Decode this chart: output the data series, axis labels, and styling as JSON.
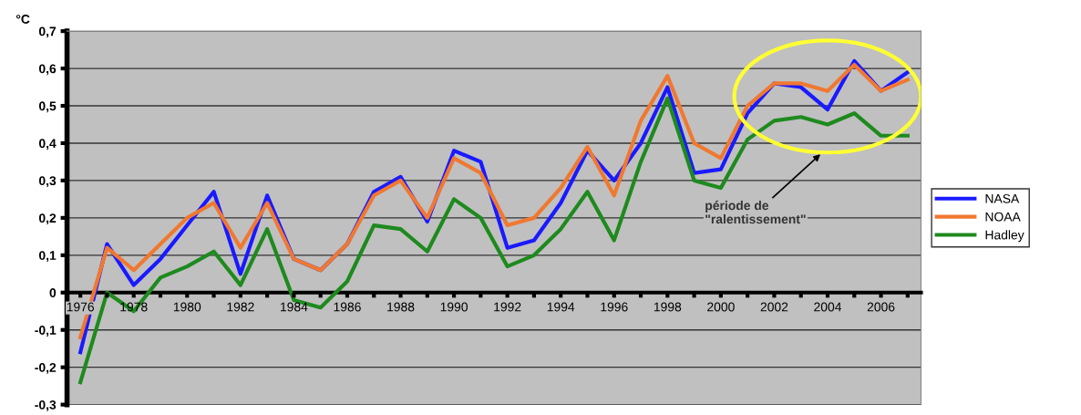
{
  "chart_data": {
    "type": "line",
    "ylabel": "°C",
    "categories": [
      "1976",
      null,
      "1978",
      null,
      "1980",
      null,
      "1982",
      null,
      "1984",
      null,
      "1986",
      null,
      "1988",
      null,
      "1990",
      null,
      "1992",
      null,
      "1994",
      null,
      "1996",
      null,
      "1998",
      null,
      "2000",
      null,
      "2002",
      null,
      "2004",
      null,
      "2006",
      null
    ],
    "series": [
      {
        "name": "NASA",
        "color": "#1a1aff",
        "values": [
          -0.16,
          0.13,
          0.02,
          0.09,
          0.18,
          0.27,
          0.05,
          0.26,
          0.09,
          0.06,
          0.13,
          0.27,
          0.31,
          0.19,
          0.38,
          0.35,
          0.12,
          0.14,
          0.24,
          0.38,
          0.3,
          0.4,
          0.55,
          0.32,
          0.33,
          0.48,
          0.56,
          0.55,
          0.49,
          0.62,
          0.54,
          0.59
        ]
      },
      {
        "name": "NOAA",
        "color": "#f07830",
        "values": [
          -0.12,
          0.12,
          0.06,
          0.13,
          0.2,
          0.24,
          0.12,
          0.24,
          0.09,
          0.06,
          0.13,
          0.26,
          0.3,
          0.2,
          0.36,
          0.32,
          0.18,
          0.2,
          0.28,
          0.39,
          0.26,
          0.46,
          0.58,
          0.4,
          0.36,
          0.5,
          0.56,
          0.56,
          0.54,
          0.61,
          0.54,
          0.57
        ]
      },
      {
        "name": "Hadley",
        "color": "#1e8a1e",
        "values": [
          -0.24,
          0.0,
          -0.05,
          0.04,
          0.07,
          0.11,
          0.02,
          0.17,
          -0.02,
          -0.04,
          0.03,
          0.18,
          0.17,
          0.11,
          0.25,
          0.2,
          0.07,
          0.1,
          0.17,
          0.27,
          0.14,
          0.35,
          0.52,
          0.3,
          0.28,
          0.41,
          0.46,
          0.47,
          0.45,
          0.48,
          0.42,
          0.42
        ]
      }
    ],
    "ylim": [
      -0.3,
      0.7
    ],
    "yticks": [
      {
        "value": -0.3,
        "label": "-0,3"
      },
      {
        "value": -0.2,
        "label": "-0,2"
      },
      {
        "value": -0.1,
        "label": "-0,1"
      },
      0,
      {
        "value": 0.1,
        "label": "0,1"
      },
      {
        "value": 0.2,
        "label": "0,2"
      },
      {
        "value": 0.3,
        "label": "0,3"
      },
      {
        "value": 0.4,
        "label": "0,4"
      },
      {
        "value": 0.5,
        "label": "0,5"
      },
      {
        "value": 0.6,
        "label": "0,6"
      },
      {
        "value": 0.7,
        "label": "0,7"
      }
    ],
    "grid": "y",
    "legend": "right",
    "marker": "none",
    "line_style": "solid",
    "annotations": [
      "période de\n\"ralentissement\""
    ]
  }
}
